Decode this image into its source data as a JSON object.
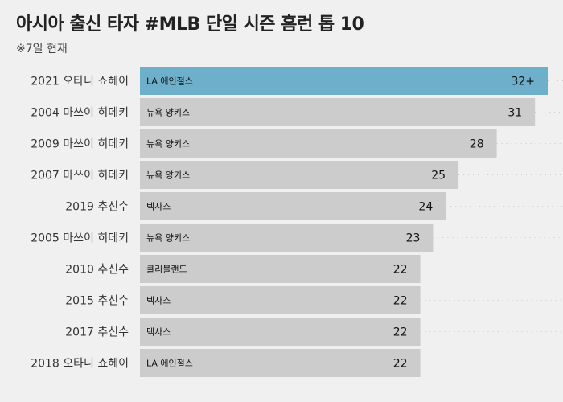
{
  "title": "아시아 출신 타자 #MLB 단일 시즌 홈런 톱 10",
  "subtitle": "※7일 현재",
  "colors": {
    "highlight": "#6eb0cc",
    "bar": "#cccccc",
    "background": "#f0f0f0"
  },
  "chart_data": {
    "type": "bar",
    "orientation": "horizontal",
    "title": "아시아 출신 타자 #MLB 단일 시즌 홈런 톱 10",
    "subtitle": "※7일 현재",
    "categories": [
      "2021 오타니 쇼헤이",
      "2004 마쓰이 히데키",
      "2009 마쓰이 히데키",
      "2007 마쓰이 히데키",
      "2019 추신수",
      "2005 마쓰이 히데키",
      "2010 추신수",
      "2015 추신수",
      "2017 추신수",
      "2018 오타니 쇼헤이"
    ],
    "teams": [
      "LA 에인절스",
      "뉴욕 양키스",
      "뉴욕 양키스",
      "뉴욕 양키스",
      "텍사스",
      "뉴욕 양키스",
      "클리블랜드",
      "텍사스",
      "텍사스",
      "LA 에인절스"
    ],
    "values": [
      32,
      31,
      28,
      25,
      24,
      23,
      22,
      22,
      22,
      22
    ],
    "value_labels": [
      "32+",
      "31",
      "28",
      "25",
      "24",
      "23",
      "22",
      "22",
      "22",
      "22"
    ],
    "highlight_index": 0,
    "xlim": [
      0,
      32
    ],
    "grid": "dotted-row-guides",
    "xlabel": "",
    "ylabel": ""
  }
}
